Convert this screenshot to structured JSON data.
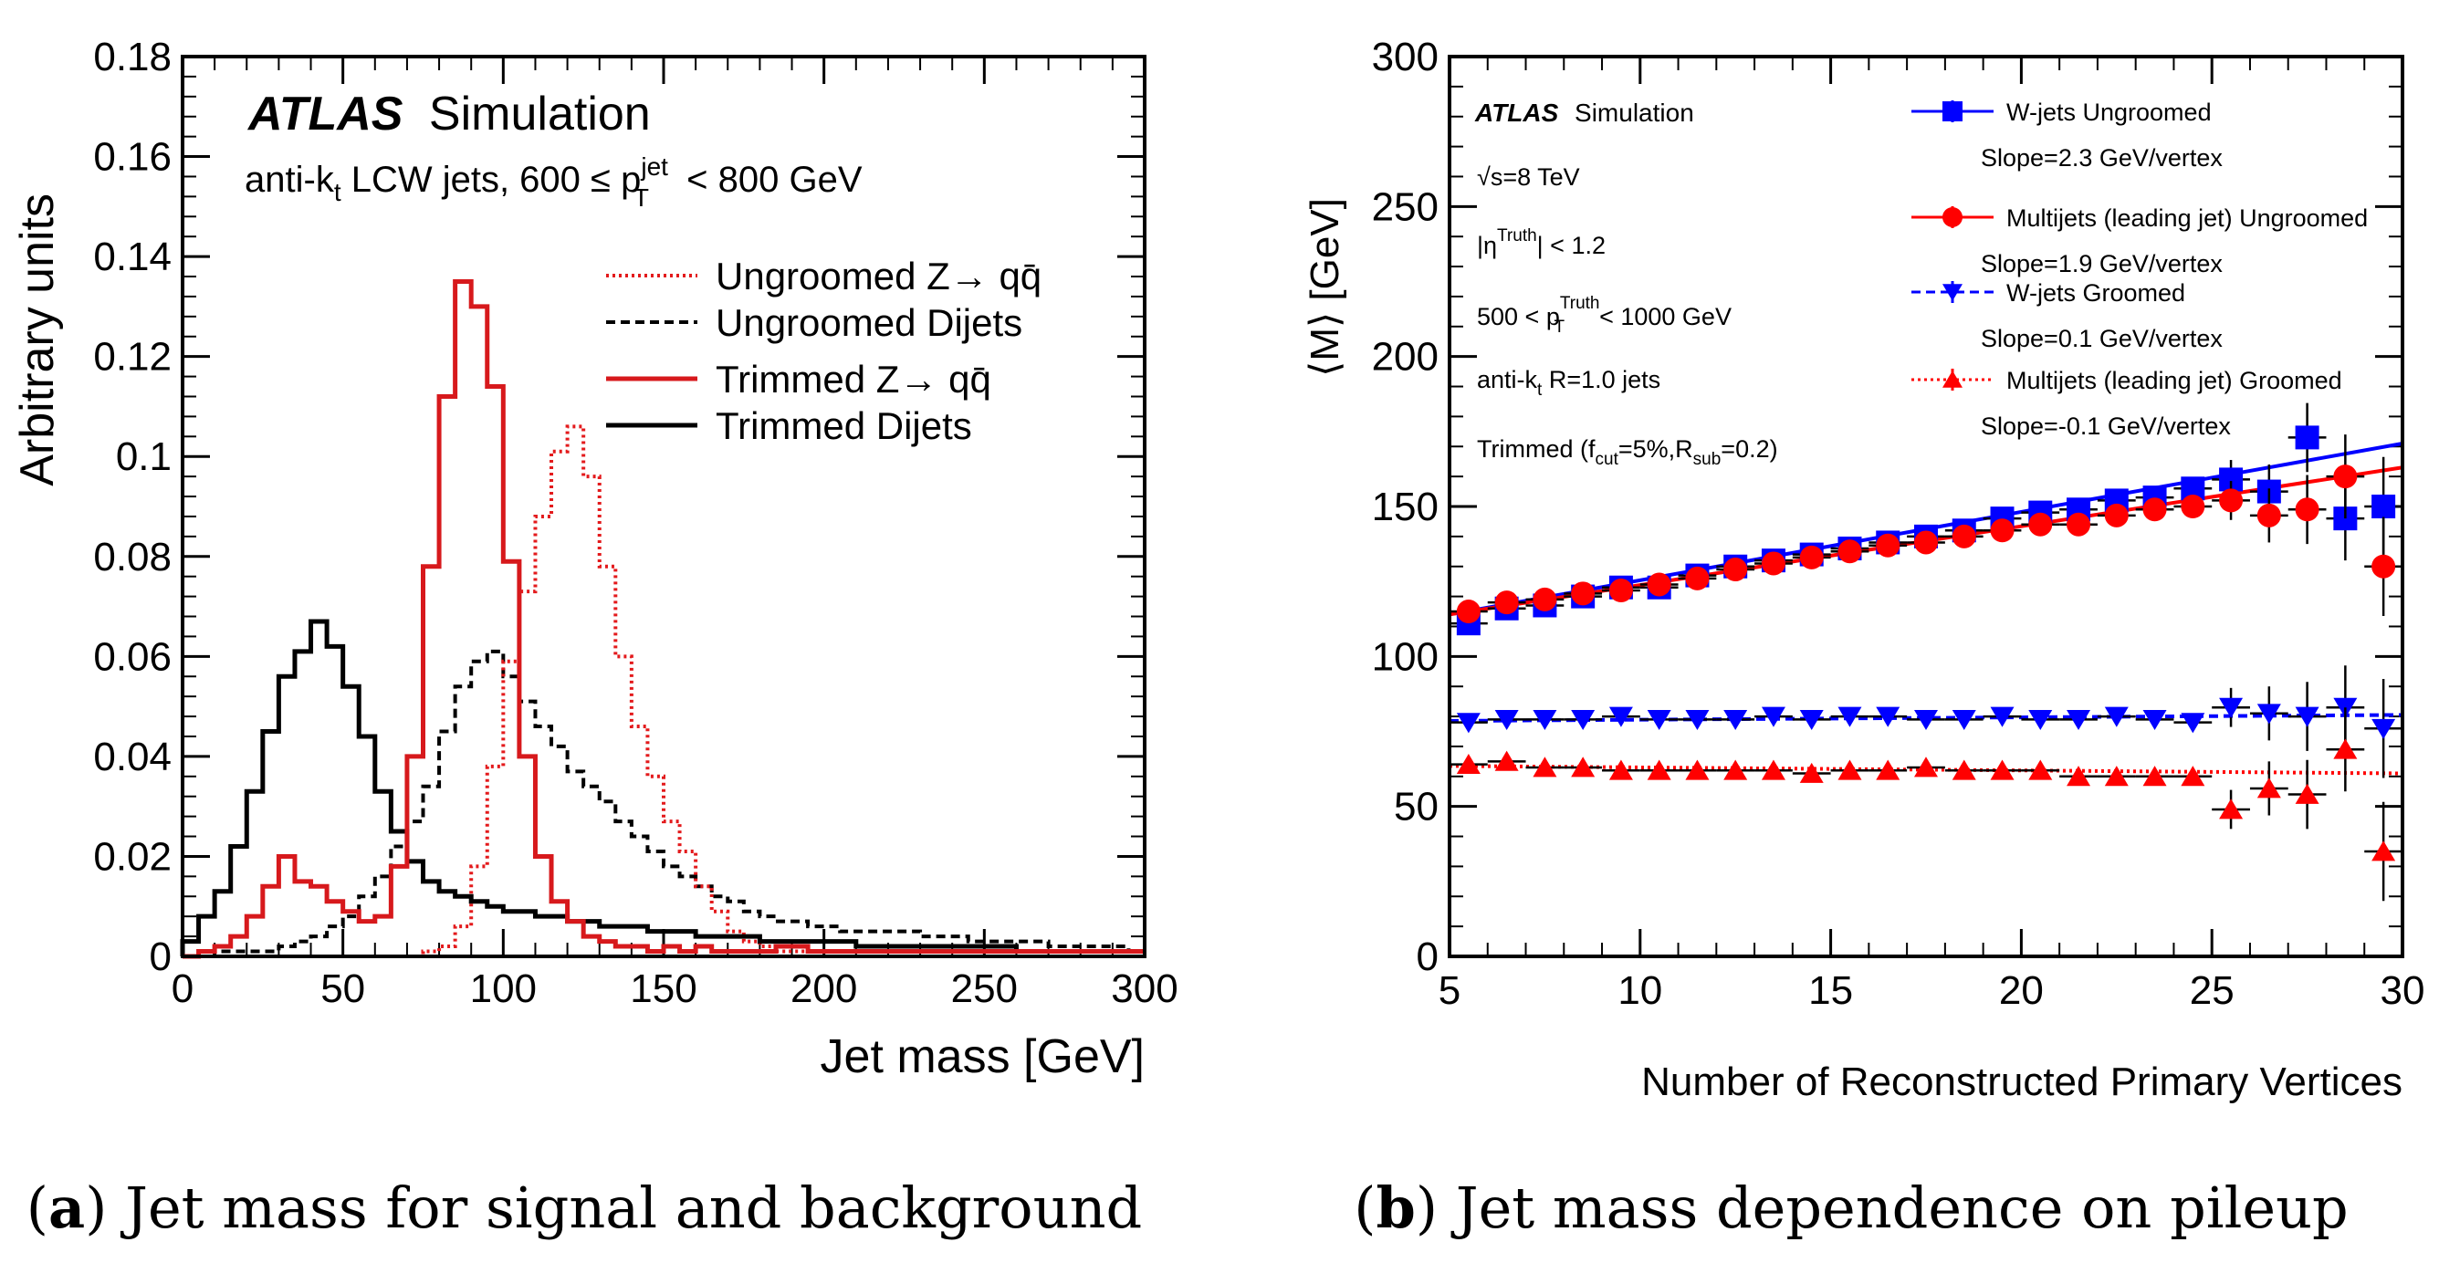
{
  "chart_data": [
    {
      "type": "line",
      "step": true,
      "panel_label": "(a)",
      "caption": "Jet mass for signal and background",
      "atlas_label": "ATLAS",
      "atlas_sublabel": "Simulation",
      "selection_text": "anti-kt LCW jets, 600 ≤ pT(jet) < 800 GeV",
      "xlabel": "Jet mass [GeV]",
      "ylabel": "Arbitrary units",
      "xlim": [
        0,
        300
      ],
      "ylim": [
        0,
        0.18
      ],
      "x_ticks": [
        0,
        50,
        100,
        150,
        200,
        250,
        300
      ],
      "y_ticks": [
        0,
        0.02,
        0.04,
        0.06,
        0.08,
        0.1,
        0.12,
        0.14,
        0.16,
        0.18
      ],
      "y_tick_labels": [
        "0",
        "0.02",
        "0.04",
        "0.06",
        "0.08",
        "0.1",
        "0.12",
        "0.14",
        "0.16",
        "0.18"
      ],
      "bin_width": 5,
      "legend_position": "top-right",
      "series": [
        {
          "name": "Ungroomed Z→ qq̄",
          "color": "#e31a1c",
          "style": "dotted",
          "values": [
            0,
            0,
            0,
            0,
            0,
            0,
            0,
            0,
            0,
            0,
            0,
            0,
            0,
            0,
            0,
            0.001,
            0.002,
            0.006,
            0.018,
            0.038,
            0.059,
            0.073,
            0.088,
            0.101,
            0.106,
            0.096,
            0.078,
            0.06,
            0.046,
            0.036,
            0.027,
            0.021,
            0.014,
            0.009,
            0.005,
            0.003,
            0.002,
            0.001,
            0.001,
            0.001,
            0.001,
            0.001,
            0.001,
            0.001,
            0.001,
            0.001,
            0.001,
            0.001,
            0.001,
            0.001,
            0.001,
            0.001,
            0.001,
            0.001,
            0.001,
            0.001,
            0.001,
            0.001,
            0.001,
            0.001
          ]
        },
        {
          "name": "Ungroomed Dijets",
          "color": "#000000",
          "style": "dashed",
          "values": [
            0,
            0,
            0.001,
            0.001,
            0.001,
            0.001,
            0.002,
            0.003,
            0.004,
            0.006,
            0.008,
            0.012,
            0.016,
            0.022,
            0.027,
            0.034,
            0.045,
            0.054,
            0.059,
            0.061,
            0.056,
            0.051,
            0.046,
            0.042,
            0.037,
            0.034,
            0.031,
            0.027,
            0.024,
            0.021,
            0.018,
            0.016,
            0.014,
            0.012,
            0.011,
            0.009,
            0.008,
            0.007,
            0.007,
            0.006,
            0.006,
            0.005,
            0.005,
            0.005,
            0.005,
            0.005,
            0.004,
            0.004,
            0.004,
            0.003,
            0.003,
            0.003,
            0.003,
            0.003,
            0.002,
            0.002,
            0.002,
            0.002,
            0.002,
            0.001
          ]
        },
        {
          "name": "Trimmed Z→ qq̄",
          "color": "#d7191c",
          "style": "solid",
          "values": [
            0,
            0.001,
            0.002,
            0.004,
            0.008,
            0.014,
            0.02,
            0.015,
            0.014,
            0.011,
            0.009,
            0.007,
            0.008,
            0.018,
            0.04,
            0.078,
            0.112,
            0.135,
            0.13,
            0.114,
            0.079,
            0.04,
            0.02,
            0.011,
            0.007,
            0.004,
            0.003,
            0.002,
            0.002,
            0.001,
            0.002,
            0.001,
            0.002,
            0.001,
            0.001,
            0.001,
            0.001,
            0.002,
            0.002,
            0.001,
            0.001,
            0.001,
            0.001,
            0.001,
            0.001,
            0.001,
            0.001,
            0.001,
            0.001,
            0.001,
            0.001,
            0.001,
            0.001,
            0.001,
            0.001,
            0.001,
            0.001,
            0.001,
            0.001,
            0.001
          ]
        },
        {
          "name": "Trimmed Dijets",
          "color": "#000000",
          "style": "solid",
          "values": [
            0.003,
            0.008,
            0.013,
            0.022,
            0.033,
            0.045,
            0.056,
            0.061,
            0.067,
            0.062,
            0.054,
            0.044,
            0.033,
            0.025,
            0.019,
            0.015,
            0.013,
            0.012,
            0.011,
            0.01,
            0.009,
            0.009,
            0.008,
            0.008,
            0.007,
            0.007,
            0.006,
            0.006,
            0.006,
            0.005,
            0.005,
            0.005,
            0.004,
            0.004,
            0.004,
            0.004,
            0.003,
            0.003,
            0.003,
            0.003,
            0.003,
            0.003,
            0.002,
            0.002,
            0.002,
            0.002,
            0.002,
            0.002,
            0.002,
            0.002,
            0.002,
            0.002,
            0.001,
            0.001,
            0.001,
            0.001,
            0.001,
            0.001,
            0.001,
            0.001
          ]
        }
      ]
    },
    {
      "type": "scatter",
      "panel_label": "(b)",
      "caption": "Jet mass dependence on pileup",
      "atlas_label": "ATLAS",
      "atlas_sublabel": "Simulation",
      "info_lines": [
        "√s=8 TeV",
        "|η(Truth)| < 1.2",
        "500 < pT(Truth) < 1000 GeV",
        "anti-kt R=1.0 jets",
        "Trimmed (fcut=5%,Rsub=0.2)"
      ],
      "xlabel": "Number of Reconstructed Primary Vertices",
      "ylabel": "⟨M⟩ [GeV]",
      "xlim": [
        5,
        30
      ],
      "ylim": [
        0,
        300
      ],
      "x_ticks": [
        5,
        10,
        15,
        20,
        25,
        30
      ],
      "y_ticks": [
        0,
        50,
        100,
        150,
        200,
        250,
        300
      ],
      "legend_position": "top-right",
      "x": [
        5.5,
        6.5,
        7.5,
        8.5,
        9.5,
        10.5,
        11.5,
        12.5,
        13.5,
        14.5,
        15.5,
        16.5,
        17.5,
        18.5,
        19.5,
        20.5,
        21.5,
        22.5,
        23.5,
        24.5,
        25.5,
        26.5,
        27.5,
        28.5,
        29.5
      ],
      "series": [
        {
          "name": "W-jets Ungroomed",
          "slope_text": "Slope=2.3 GeV/vertex",
          "color": "#0000ff",
          "marker": "square",
          "fit_style": "solid",
          "fit": [
            [
              5,
              114
            ],
            [
              30,
              171
            ]
          ],
          "values": [
            111,
            116,
            117,
            120,
            123,
            123,
            127,
            130,
            132,
            134,
            136,
            138,
            140,
            142,
            146,
            148,
            149,
            152,
            153,
            156,
            159,
            155,
            173,
            146,
            150
          ]
        },
        {
          "name": "Multijets (leading jet) Ungroomed",
          "slope_text": "Slope=1.9 GeV/vertex",
          "color": "#ff0000",
          "marker": "circle",
          "fit_style": "solid",
          "fit": [
            [
              5,
              114
            ],
            [
              30,
              163
            ]
          ],
          "values": [
            115,
            118,
            119,
            121,
            122,
            124,
            126,
            129,
            131,
            133,
            135,
            137,
            138,
            140,
            142,
            144,
            144,
            147,
            149,
            150,
            152,
            147,
            149,
            160,
            130
          ]
        },
        {
          "name": "W-jets Groomed",
          "slope_text": "Slope=0.1 GeV/vertex",
          "color": "#0000ff",
          "marker": "triangle-down",
          "fit_style": "dashed",
          "fit": [
            [
              5,
              78.5
            ],
            [
              30,
              80.5
            ]
          ],
          "values": [
            78,
            79,
            79,
            79,
            80,
            79,
            79,
            79,
            80,
            79,
            80,
            80,
            79,
            79,
            80,
            79,
            79,
            80,
            79,
            78,
            83,
            81,
            80,
            83,
            76
          ]
        },
        {
          "name": "Multijets (leading jet) Groomed",
          "slope_text": "Slope=-0.1 GeV/vertex",
          "color": "#ff0000",
          "marker": "triangle-up",
          "fit_style": "dotted",
          "fit": [
            [
              5,
              63.5
            ],
            [
              30,
              61
            ]
          ],
          "values": [
            64,
            65,
            63,
            63,
            62,
            62,
            62,
            62,
            62,
            61,
            62,
            62,
            63,
            62,
            62,
            62,
            60,
            60,
            60,
            60,
            49,
            56,
            54,
            69,
            35
          ]
        }
      ]
    }
  ]
}
